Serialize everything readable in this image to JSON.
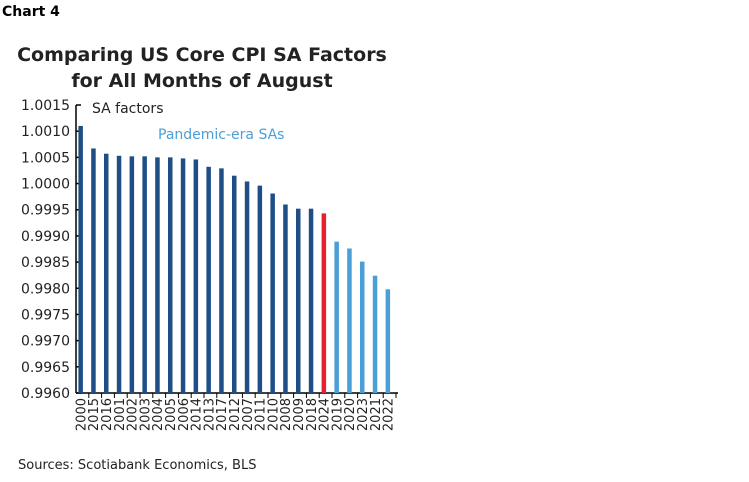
{
  "chart_label": "Chart 4",
  "source": "Sources: Scotiabank Economics, BLS",
  "chart_data": {
    "type": "bar",
    "title": "Comparing US Core CPI SA Factors for All Months of August",
    "title_lines": [
      "Comparing US Core CPI SA Factors",
      "for All Months of August"
    ],
    "ylabel": "SA factors",
    "annotation": "Pandemic-era SAs",
    "ylim": [
      0.996,
      1.0015
    ],
    "yticks": [
      "1.0015",
      "1.0010",
      "1.0005",
      "1.0000",
      "0.9995",
      "0.9990",
      "0.9985",
      "0.9980",
      "0.9975",
      "0.9970",
      "0.9965",
      "0.9960"
    ],
    "grid": false,
    "categories": [
      "2000",
      "2015",
      "2016",
      "2001",
      "2002",
      "2003",
      "2004",
      "2005",
      "2006",
      "2014",
      "2013",
      "2017",
      "2012",
      "2007",
      "2011",
      "2010",
      "2008",
      "2009",
      "2018",
      "2024",
      "2019",
      "2020",
      "2023",
      "2021",
      "2022"
    ],
    "values": [
      1.0011,
      1.00067,
      1.00057,
      1.00053,
      1.00052,
      1.00052,
      1.0005,
      1.0005,
      1.00048,
      1.00046,
      1.00032,
      1.00029,
      1.00015,
      1.00004,
      0.99996,
      0.99981,
      0.9996,
      0.99952,
      0.99952,
      0.99943,
      0.99889,
      0.99876,
      0.99851,
      0.99824,
      0.99798
    ],
    "groups": [
      "normal",
      "normal",
      "normal",
      "normal",
      "normal",
      "normal",
      "normal",
      "normal",
      "normal",
      "normal",
      "normal",
      "normal",
      "normal",
      "normal",
      "normal",
      "normal",
      "normal",
      "normal",
      "normal",
      "current",
      "pandemic",
      "pandemic",
      "pandemic",
      "pandemic",
      "pandemic"
    ],
    "colors": {
      "normal": "#1f4e86",
      "current": "#e8202e",
      "pandemic": "#4a9fd6"
    }
  }
}
